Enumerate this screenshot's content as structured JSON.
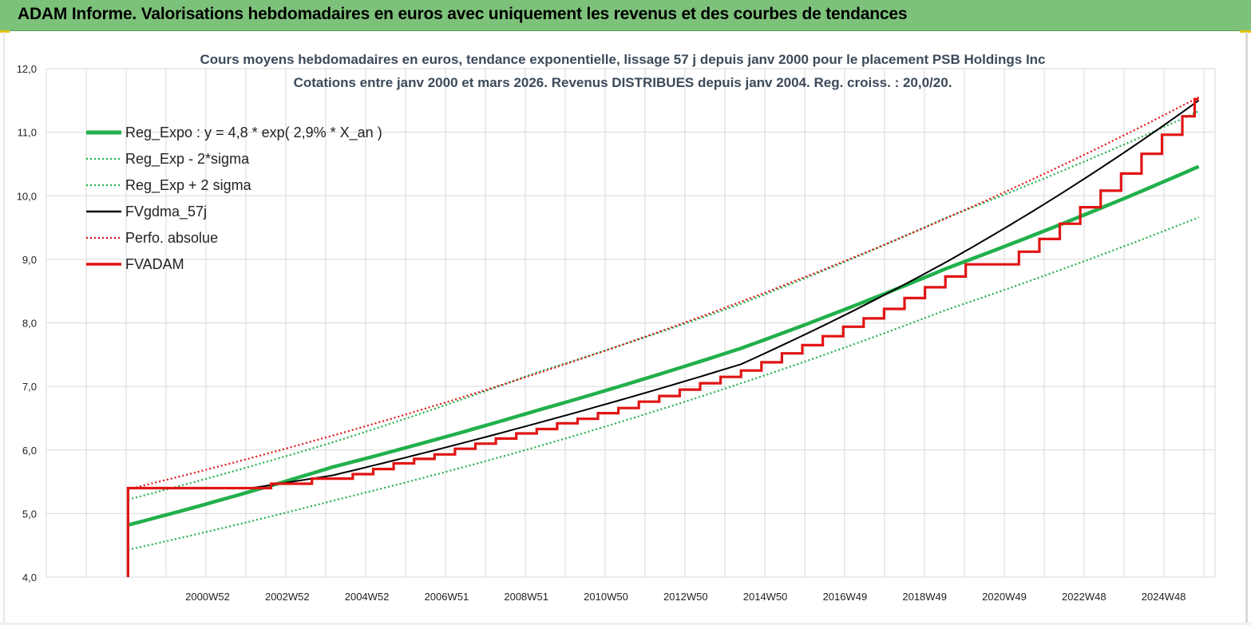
{
  "header": {
    "title": "ADAM Informe. Valorisations hebdomadaires en euros avec uniquement les revenus et des courbes de tendances"
  },
  "colors": {
    "header_bg": "#7dc27a",
    "reg_green": "#21b04b",
    "fvgdma": "#000000",
    "fvadam": "#e11414",
    "perfo": "#e11414",
    "grid": "#d9d9d9"
  },
  "chart_data": {
    "type": "line",
    "title_lines": [
      "Cours moyens hebdomadaires en euros, tendance exponentielle, lissage 57 j depuis janv 2000 pour le placement PSB Holdings Inc",
      "Cotations entre janv 2000 et mars 2026. Revenus DISTRIBUES depuis janv 2004. Reg. croiss. : 20,0/20."
    ],
    "ylim": [
      4.0,
      12.0
    ],
    "y_ticks": [
      "4,0",
      "5,0",
      "6,0",
      "7,0",
      "8,0",
      "9,0",
      "10,0",
      "11,0",
      "12,0"
    ],
    "x_ticks": [
      "2000W52",
      "2002W52",
      "2004W52",
      "2006W51",
      "2008W51",
      "2010W50",
      "2012W50",
      "2014W50",
      "2016W49",
      "2018W49",
      "2020W49",
      "2022W48",
      "2024W48"
    ],
    "grid": true,
    "legend_position": "top-left",
    "series": [
      {
        "name": "Reg_Expo : y = 4,8 * exp( 2,9% *  X_an )",
        "style": "solid-thick",
        "color": "#21b04b",
        "points": [
          [
            2000.0,
            4.82
          ],
          [
            2005.0,
            5.73
          ],
          [
            2010.0,
            6.62
          ],
          [
            2015.0,
            7.6
          ],
          [
            2020.0,
            8.85
          ],
          [
            2026.2,
            10.46
          ]
        ]
      },
      {
        "name": "Reg_Exp - 2*sigma",
        "style": "dotted",
        "color": "#21b04b",
        "points": [
          [
            2000.0,
            4.43
          ],
          [
            2005.0,
            5.2
          ],
          [
            2010.0,
            6.05
          ],
          [
            2015.0,
            7.05
          ],
          [
            2020.0,
            8.2
          ],
          [
            2026.2,
            9.66
          ]
        ]
      },
      {
        "name": "Reg_Exp + 2 sigma",
        "style": "dotted",
        "color": "#21b04b",
        "points": [
          [
            2000.0,
            5.22
          ],
          [
            2005.0,
            6.12
          ],
          [
            2010.0,
            7.22
          ],
          [
            2015.0,
            8.3
          ],
          [
            2020.0,
            9.65
          ],
          [
            2026.2,
            11.33
          ]
        ]
      },
      {
        "name": "FVgdma_57j",
        "style": "solid",
        "color": "#000000",
        "points": [
          [
            2003.0,
            5.4
          ],
          [
            2005.0,
            5.6
          ],
          [
            2010.0,
            6.42
          ],
          [
            2015.0,
            7.35
          ],
          [
            2020.0,
            8.95
          ],
          [
            2022.5,
            9.9
          ],
          [
            2026.2,
            11.5
          ]
        ]
      },
      {
        "name": "Perfo. absolue",
        "style": "dotted",
        "color": "#e11414",
        "points": [
          [
            2000.0,
            5.38
          ],
          [
            2026.2,
            11.55
          ]
        ]
      },
      {
        "name": "FVADAM",
        "style": "step-thick",
        "color": "#e11414",
        "start_x": 2000.0,
        "end_x": 2026.2,
        "low": 4.0,
        "initial": 5.4,
        "steps": [
          [
            2003.5,
            5.47
          ],
          [
            2004.5,
            5.55
          ],
          [
            2005.5,
            5.62
          ],
          [
            2006.0,
            5.7
          ],
          [
            2006.5,
            5.79
          ],
          [
            2007.0,
            5.86
          ],
          [
            2007.5,
            5.93
          ],
          [
            2008.0,
            6.02
          ],
          [
            2008.5,
            6.1
          ],
          [
            2009.0,
            6.18
          ],
          [
            2009.5,
            6.26
          ],
          [
            2010.0,
            6.33
          ],
          [
            2010.5,
            6.42
          ],
          [
            2011.0,
            6.49
          ],
          [
            2011.5,
            6.58
          ],
          [
            2012.0,
            6.66
          ],
          [
            2012.5,
            6.76
          ],
          [
            2013.0,
            6.85
          ],
          [
            2013.5,
            6.95
          ],
          [
            2014.0,
            7.05
          ],
          [
            2014.5,
            7.15
          ],
          [
            2015.0,
            7.25
          ],
          [
            2015.5,
            7.38
          ],
          [
            2016.0,
            7.52
          ],
          [
            2016.5,
            7.65
          ],
          [
            2017.0,
            7.79
          ],
          [
            2017.5,
            7.94
          ],
          [
            2018.0,
            8.07
          ],
          [
            2018.5,
            8.22
          ],
          [
            2019.0,
            8.39
          ],
          [
            2019.5,
            8.56
          ],
          [
            2020.0,
            8.73
          ],
          [
            2020.5,
            8.92
          ],
          [
            2021.8,
            9.12
          ],
          [
            2022.3,
            9.32
          ],
          [
            2022.8,
            9.56
          ],
          [
            2023.3,
            9.82
          ],
          [
            2023.8,
            10.08
          ],
          [
            2024.3,
            10.35
          ],
          [
            2024.8,
            10.66
          ],
          [
            2025.3,
            10.96
          ],
          [
            2025.8,
            11.25
          ],
          [
            2026.1,
            11.52
          ]
        ]
      }
    ]
  }
}
